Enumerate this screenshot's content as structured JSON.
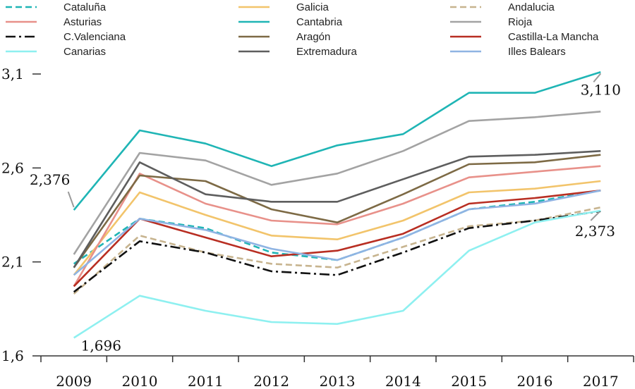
{
  "chart_data": {
    "type": "line",
    "x": [
      "2009",
      "2010",
      "2011",
      "2012",
      "2013",
      "2014",
      "2015",
      "2016",
      "2017"
    ],
    "ylim": [
      1.6,
      3.1
    ],
    "yticks": [
      "1,6",
      "2,1",
      "2,6",
      "3,1"
    ],
    "grid": false,
    "legend_position": "top",
    "series": [
      {
        "name": "Cataluña",
        "color": "#1fb5b5",
        "dash": "dashed",
        "values": [
          2.09,
          2.33,
          2.28,
          2.15,
          2.11,
          2.23,
          2.38,
          2.42,
          2.48
        ]
      },
      {
        "name": "Galicia",
        "color": "#f2c46b",
        "dash": "solid",
        "values": [
          2.03,
          2.47,
          2.35,
          2.24,
          2.22,
          2.32,
          2.47,
          2.49,
          2.53
        ]
      },
      {
        "name": "Andalucia",
        "color": "#c7b48f",
        "dash": "dashed",
        "values": [
          1.93,
          2.24,
          2.15,
          2.09,
          2.07,
          2.18,
          2.29,
          2.32,
          2.39
        ]
      },
      {
        "name": "Asturias",
        "color": "#e8918a",
        "dash": "solid",
        "values": [
          1.97,
          2.57,
          2.41,
          2.32,
          2.3,
          2.41,
          2.55,
          2.58,
          2.61
        ]
      },
      {
        "name": "Cantabria",
        "color": "#1fb5b5",
        "dash": "solid",
        "values": [
          2.376,
          2.8,
          2.73,
          2.61,
          2.72,
          2.78,
          3.0,
          3.0,
          3.11
        ]
      },
      {
        "name": "Rioja",
        "color": "#a3a3a3",
        "dash": "solid",
        "values": [
          2.14,
          2.68,
          2.64,
          2.51,
          2.57,
          2.69,
          2.85,
          2.87,
          2.9
        ]
      },
      {
        "name": "C.Valenciana",
        "color": "#111111",
        "dash": "dashdot",
        "values": [
          1.94,
          2.21,
          2.15,
          2.05,
          2.03,
          2.15,
          2.28,
          2.32,
          2.37
        ]
      },
      {
        "name": "Aragón",
        "color": "#7d6a45",
        "dash": "solid",
        "values": [
          2.07,
          2.56,
          2.53,
          2.38,
          2.31,
          2.46,
          2.62,
          2.63,
          2.67
        ]
      },
      {
        "name": "Castilla-La Mancha",
        "color": "#b82e22",
        "dash": "solid",
        "values": [
          1.97,
          2.33,
          2.23,
          2.13,
          2.16,
          2.25,
          2.41,
          2.44,
          2.48
        ]
      },
      {
        "name": "Canarias",
        "color": "#8ef0f0",
        "dash": "solid",
        "values": [
          1.696,
          1.92,
          1.84,
          1.78,
          1.77,
          1.84,
          2.16,
          2.31,
          2.373
        ]
      },
      {
        "name": "Extremadura",
        "color": "#5e5e5e",
        "dash": "solid",
        "values": [
          2.07,
          2.63,
          2.46,
          2.42,
          2.42,
          2.54,
          2.66,
          2.67,
          2.69
        ]
      },
      {
        "name": "Illes Balears",
        "color": "#8fb4e3",
        "dash": "solid",
        "values": [
          2.03,
          2.33,
          2.27,
          2.17,
          2.11,
          2.23,
          2.38,
          2.41,
          2.48
        ]
      }
    ],
    "annotations": [
      {
        "text": "2,376",
        "series": "Cantabria",
        "point": "2009"
      },
      {
        "text": "1,696",
        "series": "Canarias",
        "point": "2009"
      },
      {
        "text": "3,110",
        "series": "Cantabria",
        "point": "2017"
      },
      {
        "text": "2,373",
        "series": "Canarias",
        "point": "2017"
      }
    ]
  }
}
